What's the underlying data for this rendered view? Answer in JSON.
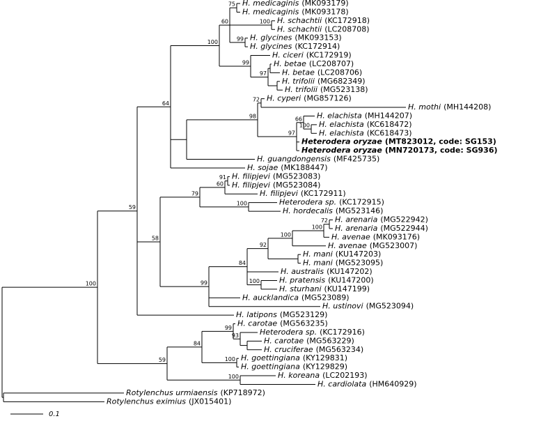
{
  "leaves": [
    {
      "species": "H. medicaginis",
      "accession": "(MK093179)"
    },
    {
      "species": "H. medicaginis",
      "accession": "(MK093178)"
    },
    {
      "species": "H. schachtii",
      "accession": "(KC172918)"
    },
    {
      "species": "H. schachtii",
      "accession": "(LC208708)"
    },
    {
      "species": "H. glycines",
      "accession": "(MK093153)"
    },
    {
      "species": "H. glycines",
      "accession": "(KC172914)"
    },
    {
      "species": "H. ciceri",
      "accession": "(KC172919)"
    },
    {
      "species": "H. betae",
      "accession": "(LC208707)"
    },
    {
      "species": "H. betae",
      "accession": "(LC208706)"
    },
    {
      "species": "H. trifolii",
      "accession": "(MG682349)"
    },
    {
      "species": "H. trifolii",
      "accession": "(MG523138)"
    },
    {
      "species": "H. cyperi",
      "accession": "(MG857126)"
    },
    {
      "species": "H. mothi",
      "accession": "(MH144208)"
    },
    {
      "species": "H. elachista",
      "accession": "(MH144207)"
    },
    {
      "species": "H. elachista",
      "accession": "(KC618472)"
    },
    {
      "species": "H. elachista",
      "accession": "(KC618473)"
    },
    {
      "species": "Heterodera oryzae",
      "accession": "(MT823012, code: SG153)",
      "bold": true
    },
    {
      "species": "Heterodera oryzae",
      "accession": "(MN720173, code: SG936)",
      "bold": true
    },
    {
      "species": "H. guangdongensis",
      "accession": "(MF425735)"
    },
    {
      "species": "H. sojae",
      "accession": "(MK188447)"
    },
    {
      "species": "H. filipjevi",
      "accession": "(MG523083)"
    },
    {
      "species": "H. filipjevi",
      "accession": "(MG523084)"
    },
    {
      "species": "H. filipjevi",
      "accession": "(KC172911)"
    },
    {
      "species": "Heterodera sp.",
      "accession": "(KC172915)"
    },
    {
      "species": "H. hordecalis",
      "accession": "(MG523146)"
    },
    {
      "species": "H. arenaria",
      "accession": "(MG522942)"
    },
    {
      "species": "H. arenaria",
      "accession": "(MG522944)"
    },
    {
      "species": "H. avenae",
      "accession": "(MK093176)"
    },
    {
      "species": "H. avenae",
      "accession": "(MG523007)"
    },
    {
      "species": "H. mani",
      "accession": "(KU147203)"
    },
    {
      "species": "H. mani",
      "accession": "(MG523095)"
    },
    {
      "species": "H. australis",
      "accession": "(KU147202)"
    },
    {
      "species": "H. pratensis",
      "accession": "(KU147200)"
    },
    {
      "species": "H. sturhani",
      "accession": "(KU147199)"
    },
    {
      "species": "H. aucklandica",
      "accession": "(MG523089)"
    },
    {
      "species": "H. ustinovi",
      "accession": "(MG523094)"
    },
    {
      "species": "H. latipons",
      "accession": "(MG523129)"
    },
    {
      "species": "H. carotae",
      "accession": "(MG563235)"
    },
    {
      "species": "Heterodera sp.",
      "accession": "(KC172916)"
    },
    {
      "species": "H. carotae",
      "accession": "(MG563229)"
    },
    {
      "species": "H. cruciferae",
      "accession": "(MG563234)"
    },
    {
      "species": "H. goettingiana",
      "accession": "(KY129831)"
    },
    {
      "species": "H. goettingiana",
      "accession": "(KY129829)"
    },
    {
      "species": "H. koreana",
      "accession": "(LC202193)"
    },
    {
      "species": "H. cardiolata",
      "accession": "(HM640929)"
    },
    {
      "species": "Rotylenchus urmiaensis",
      "accession": "(KP718972)"
    },
    {
      "species": "Rotylenchus eximius",
      "accession": "(JX015401)"
    }
  ],
  "bootstraps": [
    75,
    60,
    100,
    100,
    99,
    99,
    97,
    72,
    66,
    100,
    98,
    97,
    64,
    59,
    91,
    60,
    79,
    100,
    72,
    100,
    100,
    92,
    58,
    84,
    100,
    99,
    100,
    99,
    93,
    84,
    59,
    100,
    100
  ],
  "scale_bar": 0.1
}
